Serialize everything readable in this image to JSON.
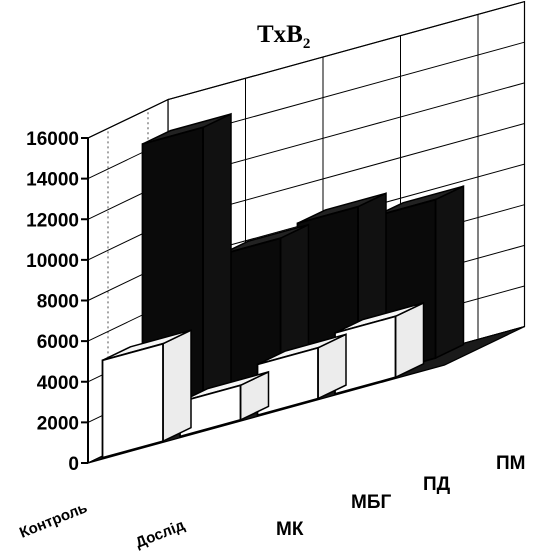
{
  "chart_data": {
    "type": "bar",
    "title_main": "TxB",
    "title_subscript": "2",
    "categories": [
      "МК",
      "МБГ",
      "ПД",
      "ПМ"
    ],
    "series": [
      {
        "name": "Контроль",
        "values": [
          14500,
          8000,
          8500,
          7800
        ]
      },
      {
        "name": "Дослід",
        "values": [
          4800,
          1700,
          2500,
          3000
        ]
      }
    ],
    "yticks": [
      "0",
      "2000",
      "4000",
      "6000",
      "8000",
      "10000",
      "12000",
      "14000",
      "16000"
    ],
    "ylim": [
      0,
      16000
    ],
    "grid": true,
    "colors": {
      "Контроль": "#0a0a0a",
      "Дослід": "#ffffff"
    }
  }
}
